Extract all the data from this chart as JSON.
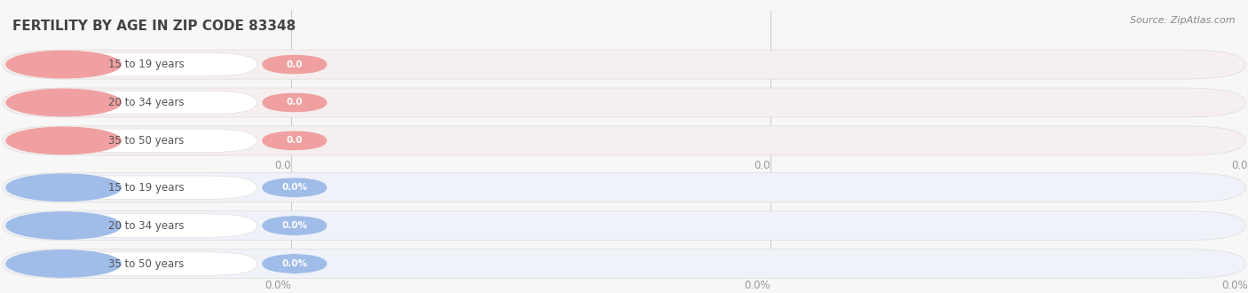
{
  "title": "FERTILITY BY AGE IN ZIP CODE 83348",
  "source": "Source: ZipAtlas.com",
  "categories": [
    "15 to 19 years",
    "20 to 34 years",
    "35 to 50 years"
  ],
  "group1_labels": [
    "0.0",
    "0.0",
    "0.0"
  ],
  "group2_labels": [
    "0.0%",
    "0.0%",
    "0.0%"
  ],
  "group1_bubble_color": "#f0a0a0",
  "group2_bubble_color": "#a0bce8",
  "bar_bg_color_g1": "#f5efef",
  "bar_bg_color_g2": "#eff2f8",
  "bar_border_color": "#e0dada",
  "grid_color": "#cccccc",
  "bg_color": "#f7f7f7",
  "title_color": "#444444",
  "tick_label_color": "#999999",
  "cat_text_color": "#555555",
  "source_color": "#888888",
  "xtick_positions": [
    0.233,
    0.617,
    1.0
  ],
  "xtick_labels_top": [
    "0.0",
    "0.0",
    "0.0"
  ],
  "xtick_labels_bot": [
    "0.0%",
    "0.0%",
    "0.0%"
  ]
}
